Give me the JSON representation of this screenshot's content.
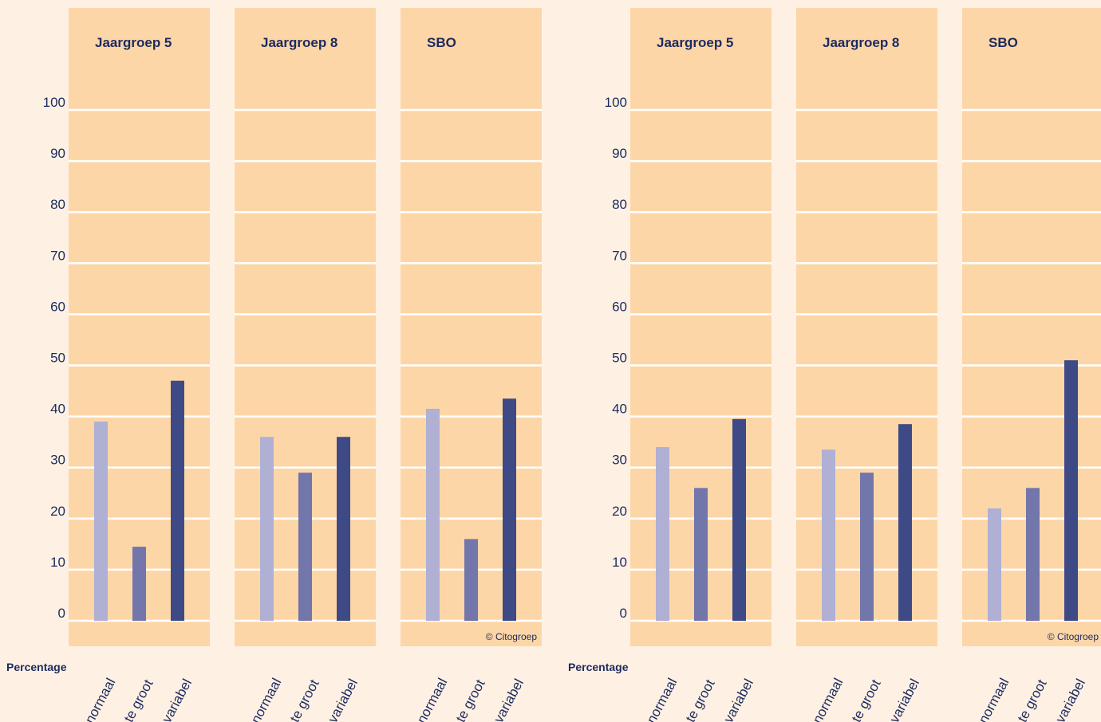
{
  "colors": {
    "background": "#fef1e4",
    "panel": "#fdd6a8",
    "gridline": "#ffffff",
    "text": "#1c2a5e",
    "normaal": "#afb0d3",
    "te_groot": "#7276aa",
    "variabel": "#3e4a85"
  },
  "chart_data": [
    {
      "type": "bar",
      "ylabel": "Percentage",
      "ylim": [
        0,
        100
      ],
      "yticks": [
        "0",
        "10",
        "20",
        "30",
        "40",
        "50",
        "60",
        "70",
        "80",
        "90",
        "100"
      ],
      "grid": true,
      "copyright": "© Citogroep",
      "panels": [
        {
          "title": "Jaargroep 5",
          "categories": [
            "normaal",
            "te groot",
            "variabel"
          ],
          "values": [
            39,
            14.5,
            47
          ]
        },
        {
          "title": "Jaargroep 8",
          "categories": [
            "normaal",
            "te groot",
            "variabel"
          ],
          "values": [
            36,
            29,
            36
          ]
        },
        {
          "title": "SBO",
          "categories": [
            "normaal",
            "te groot",
            "variabel"
          ],
          "values": [
            41.5,
            16,
            43.5
          ]
        }
      ]
    },
    {
      "type": "bar",
      "ylabel": "Percentage",
      "ylim": [
        0,
        100
      ],
      "yticks": [
        "0",
        "10",
        "20",
        "30",
        "40",
        "50",
        "60",
        "70",
        "80",
        "90",
        "100"
      ],
      "grid": true,
      "copyright": "© Citogroep",
      "panels": [
        {
          "title": "Jaargroep 5",
          "categories": [
            "normaal",
            "te groot",
            "variabel"
          ],
          "values": [
            34,
            26,
            39.5
          ]
        },
        {
          "title": "Jaargroep 8",
          "categories": [
            "normaal",
            "te groot",
            "variabel"
          ],
          "values": [
            33.5,
            29,
            38.5
          ]
        },
        {
          "title": "SBO",
          "categories": [
            "normaal",
            "te groot",
            "variabel"
          ],
          "values": [
            22,
            26,
            51
          ]
        }
      ]
    }
  ]
}
